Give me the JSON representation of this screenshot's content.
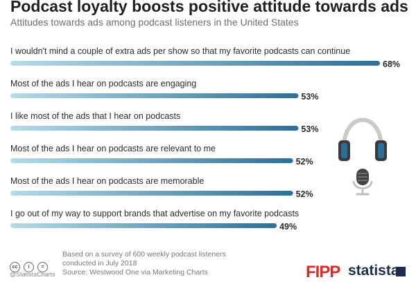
{
  "header": {
    "title": "Podcast loyalty boosts positive attitude towards ads",
    "subtitle": "Attitudes towards ads among podcast listeners in the United States"
  },
  "chart_data": {
    "type": "bar",
    "orientation": "horizontal",
    "categories": [
      "I wouldn't mind a couple of extra ads per show so that my favorite podcasts can continue",
      "Most of the ads I hear on podcasts are engaging",
      "I like most of the ads that I hear on podcasts",
      "Most of the ads I hear on podcasts are relevant to me",
      "Most of the ads I hear on podcasts are memorable",
      "I go out of my way to support brands that advertise on my favorite podcasts"
    ],
    "values": [
      68,
      53,
      53,
      52,
      52,
      49
    ],
    "value_labels": [
      "68%",
      "53%",
      "53%",
      "52%",
      "52%",
      "49%"
    ],
    "unit": "%",
    "xlim": [
      0,
      68
    ],
    "grid": false,
    "colors": {
      "bar_start": "#b4dce9",
      "bar_end": "#2b6f9b",
      "headphone_ear": "#2c6e9a",
      "headphone_band": "#c9c9c9"
    },
    "title": "Podcast loyalty boosts positive attitude towards ads",
    "subtitle": "Attitudes towards ads among podcast listeners in the United States"
  },
  "footer": {
    "note_line1": "Based on a survey of 600 weekly podcast listeners",
    "note_line2": "conducted in July 2018",
    "source": "Source: Westwood One via Marketing Charts",
    "handle": "@StatistaCharts",
    "cc_icons": [
      "cc-icon",
      "by-icon",
      "equals-icon"
    ]
  },
  "logos": {
    "fipp": "FIPP",
    "statista": "statista"
  },
  "decor": {
    "icons": [
      "headphones-icon",
      "microphone-icon"
    ]
  }
}
